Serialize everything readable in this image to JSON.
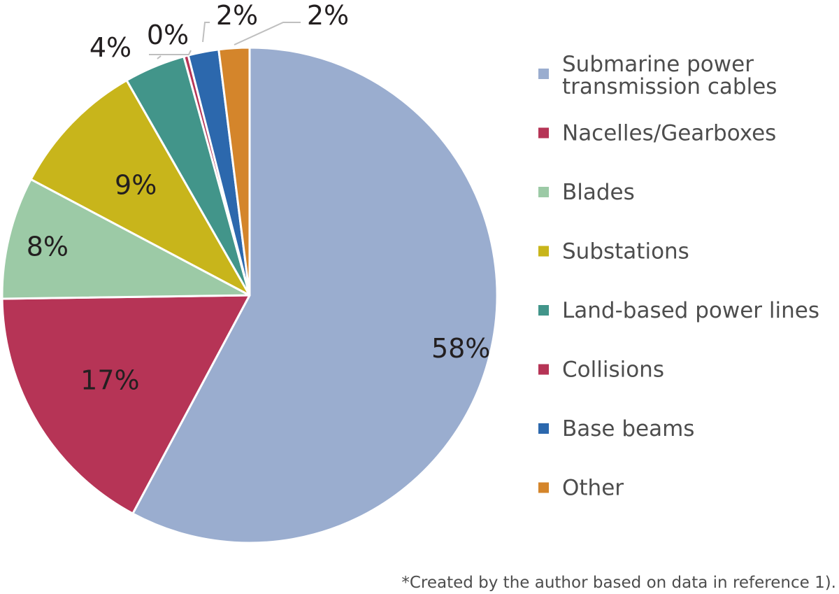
{
  "chart_data": {
    "type": "pie",
    "slices": [
      {
        "label": "Submarine power transmission cables",
        "value": 58,
        "display": "58%",
        "color": "#9aadcf"
      },
      {
        "label": "Nacelles/Gearboxes",
        "value": 17,
        "display": "17%",
        "color": "#b63456"
      },
      {
        "label": "Blades",
        "value": 8,
        "display": "8%",
        "color": "#9ccaa6"
      },
      {
        "label": "Substations",
        "value": 9,
        "display": "9%",
        "color": "#c8b51b"
      },
      {
        "label": "Land-based power lines",
        "value": 4,
        "display": "4%",
        "color": "#42958a"
      },
      {
        "label": "Collisions",
        "value": 0.3,
        "display": "0%",
        "color": "#b63456"
      },
      {
        "label": "Base beams",
        "value": 2,
        "display": "2%",
        "color": "#2c68ad"
      },
      {
        "label": "Other",
        "value": 2,
        "display": "2%",
        "color": "#d4852b"
      }
    ],
    "legend_position": "right"
  },
  "legend_lines": [
    [
      "Submarine power",
      "transmission cables"
    ],
    [
      "Nacelles/Gearboxes"
    ],
    [
      "Blades"
    ],
    [
      "Substations"
    ],
    [
      "Land-based power lines"
    ],
    [
      "Collisions"
    ],
    [
      "Base beams"
    ],
    [
      "Other"
    ]
  ],
  "footnote": "*Created by the author based on data in reference 1)."
}
